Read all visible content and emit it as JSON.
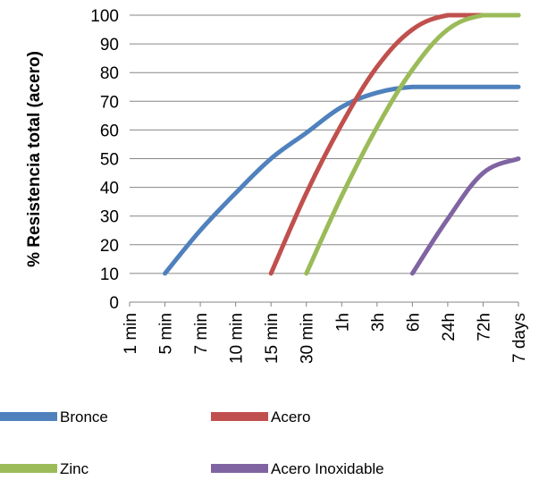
{
  "chart_data": {
    "type": "line",
    "title": "",
    "xlabel": "",
    "ylabel": "% Resistencia total (acero)",
    "categories": [
      "1 min",
      "5 min",
      "7 min",
      "10 min",
      "15 min",
      "30 min",
      "1h",
      "3h",
      "6h",
      "24h",
      "72h",
      "7 days"
    ],
    "ylim": [
      0,
      100
    ],
    "yticks": [
      0,
      10,
      20,
      30,
      40,
      50,
      60,
      70,
      80,
      90,
      100
    ],
    "grid": "horizontal",
    "legend_position": "bottom",
    "series": [
      {
        "name": "Bronce",
        "color": "#4f81bd",
        "values": [
          null,
          10,
          25,
          38,
          50,
          59,
          68,
          73,
          75,
          75,
          75,
          75
        ]
      },
      {
        "name": "Acero",
        "color": "#c0504d",
        "values": [
          null,
          null,
          null,
          null,
          10,
          38,
          62,
          82,
          95,
          100,
          100,
          100
        ]
      },
      {
        "name": "Zinc",
        "color": "#9bbb59",
        "values": [
          null,
          null,
          null,
          null,
          null,
          10,
          37,
          61,
          81,
          95,
          100,
          100
        ]
      },
      {
        "name": "Acero Inoxidable",
        "color": "#8064a2",
        "values": [
          null,
          null,
          null,
          null,
          null,
          null,
          null,
          null,
          10,
          29,
          45,
          50
        ]
      }
    ]
  }
}
